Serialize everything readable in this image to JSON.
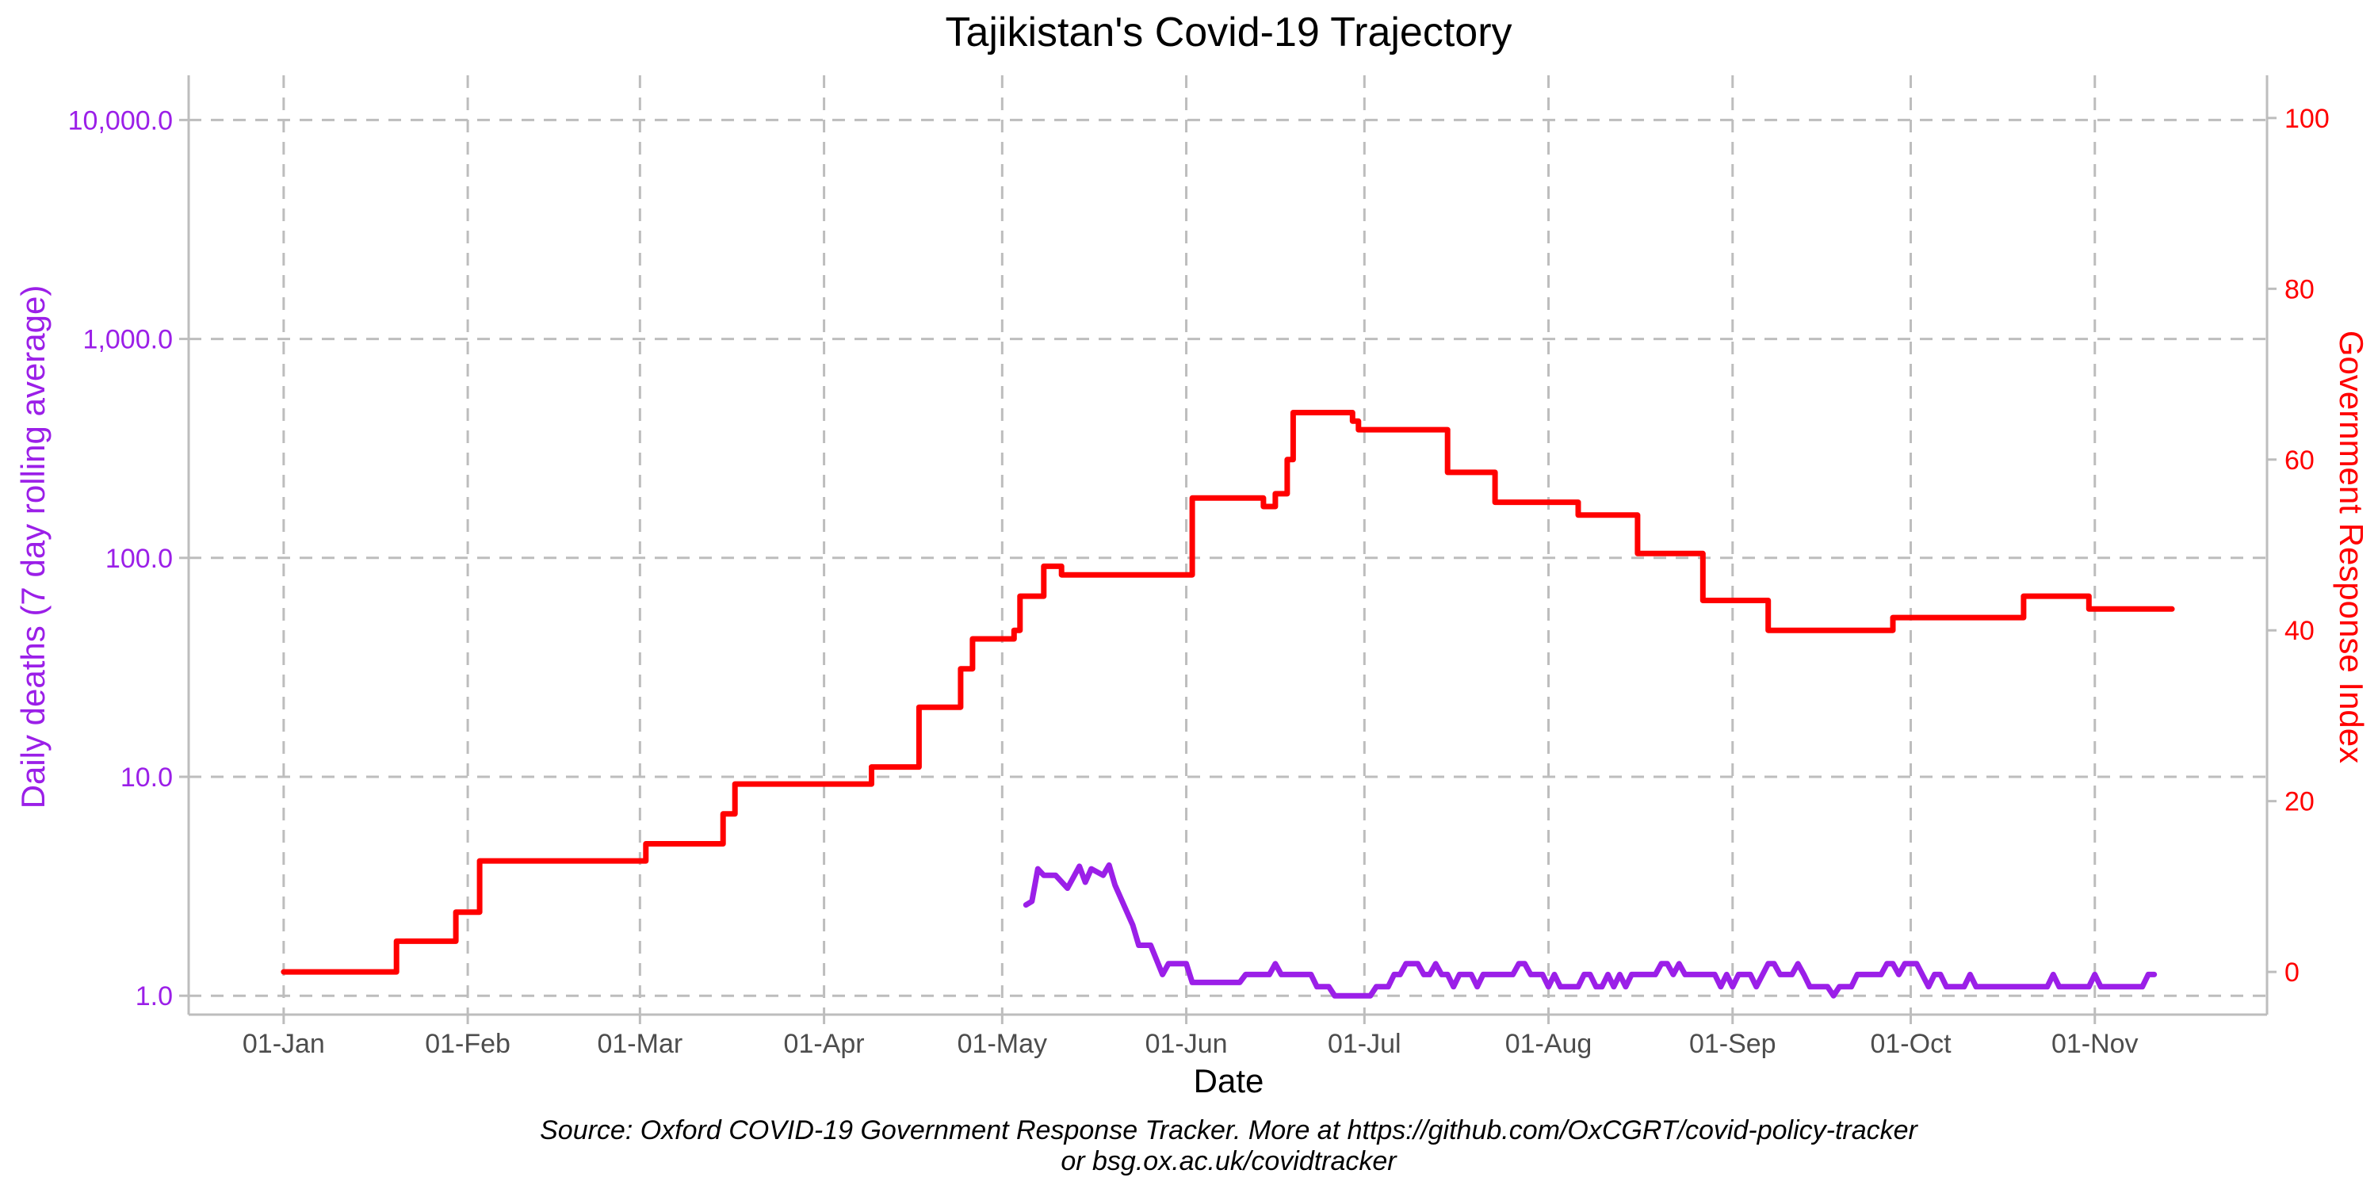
{
  "chart_data": {
    "type": "line",
    "title": "Tajikistan's Covid-19 Trajectory",
    "xlabel": "Date",
    "ylabel_left": "Daily deaths (7 day rolling average)",
    "ylabel_right": "Government Response Index",
    "caption_line1": "Source: Oxford COVID-19 Government Response Tracker. More at https://github.com/OxCGRT/covid-policy-tracker",
    "caption_line2": "or bsg.ox.ac.uk/covidtracker",
    "x_ticks": [
      {
        "date": "2020-01-01",
        "label": "01-Jan"
      },
      {
        "date": "2020-02-01",
        "label": "01-Feb"
      },
      {
        "date": "2020-03-01",
        "label": "01-Mar"
      },
      {
        "date": "2020-04-01",
        "label": "01-Apr"
      },
      {
        "date": "2020-05-01",
        "label": "01-May"
      },
      {
        "date": "2020-06-01",
        "label": "01-Jun"
      },
      {
        "date": "2020-07-01",
        "label": "01-Jul"
      },
      {
        "date": "2020-08-01",
        "label": "01-Aug"
      },
      {
        "date": "2020-09-01",
        "label": "01-Sep"
      },
      {
        "date": "2020-10-01",
        "label": "01-Oct"
      },
      {
        "date": "2020-11-01",
        "label": "01-Nov"
      }
    ],
    "xlim": [
      "2019-12-16",
      "2020-11-30"
    ],
    "y_left": {
      "scale": "log10",
      "lim": [
        0.82,
        16000
      ],
      "ticks": [
        {
          "value": 1,
          "label": "1.0"
        },
        {
          "value": 10,
          "label": "10.0"
        },
        {
          "value": 100,
          "label": "100.0"
        },
        {
          "value": 1000,
          "label": "1,000.0"
        },
        {
          "value": 10000,
          "label": "10,000.0"
        }
      ]
    },
    "y_right": {
      "scale": "linear",
      "lim": [
        -5,
        105
      ],
      "ticks": [
        {
          "value": 0,
          "label": "0"
        },
        {
          "value": 20,
          "label": "20"
        },
        {
          "value": 40,
          "label": "40"
        },
        {
          "value": 60,
          "label": "60"
        },
        {
          "value": 80,
          "label": "80"
        },
        {
          "value": 100,
          "label": "100"
        }
      ]
    },
    "grid": true,
    "series": [
      {
        "name": "Government Response Index",
        "axis": "right",
        "color": "#ff0000",
        "step": true,
        "points": [
          [
            "2020-01-01",
            0
          ],
          [
            "2020-01-20",
            3.6
          ],
          [
            "2020-01-30",
            7
          ],
          [
            "2020-02-01",
            7
          ],
          [
            "2020-02-03",
            13
          ],
          [
            "2020-03-02",
            15
          ],
          [
            "2020-03-15",
            18.5
          ],
          [
            "2020-03-17",
            22
          ],
          [
            "2020-04-09",
            24
          ],
          [
            "2020-04-17",
            31
          ],
          [
            "2020-04-24",
            35.5
          ],
          [
            "2020-04-26",
            39
          ],
          [
            "2020-05-03",
            40
          ],
          [
            "2020-05-04",
            44
          ],
          [
            "2020-05-08",
            47.5
          ],
          [
            "2020-05-11",
            46.5
          ],
          [
            "2020-06-02",
            55.5
          ],
          [
            "2020-06-14",
            54.5
          ],
          [
            "2020-06-16",
            56
          ],
          [
            "2020-06-18",
            60
          ],
          [
            "2020-06-19",
            65.5
          ],
          [
            "2020-06-29",
            64.5
          ],
          [
            "2020-06-30",
            63.5
          ],
          [
            "2020-07-15",
            58.5
          ],
          [
            "2020-07-23",
            55
          ],
          [
            "2020-08-06",
            53.5
          ],
          [
            "2020-08-16",
            49
          ],
          [
            "2020-08-27",
            43.5
          ],
          [
            "2020-09-07",
            40
          ],
          [
            "2020-09-28",
            41.5
          ],
          [
            "2020-10-20",
            44
          ],
          [
            "2020-10-31",
            42.5
          ],
          [
            "2020-11-14",
            42.5
          ]
        ]
      },
      {
        "name": "Daily deaths (7 day rolling average)",
        "axis": "left",
        "color": "#9b1fe8",
        "step": false,
        "points": [
          [
            "2020-05-05",
            2.6
          ],
          [
            "2020-05-06",
            2.7
          ],
          [
            "2020-05-07",
            3.8
          ],
          [
            "2020-05-08",
            3.55
          ],
          [
            "2020-05-10",
            3.55
          ],
          [
            "2020-05-12",
            3.1
          ],
          [
            "2020-05-14",
            3.9
          ],
          [
            "2020-05-15",
            3.3
          ],
          [
            "2020-05-16",
            3.8
          ],
          [
            "2020-05-18",
            3.55
          ],
          [
            "2020-05-19",
            3.95
          ],
          [
            "2020-05-20",
            3.2
          ],
          [
            "2020-05-23",
            2.1
          ],
          [
            "2020-05-24",
            1.7
          ],
          [
            "2020-05-26",
            1.7
          ],
          [
            "2020-05-28",
            1.25
          ],
          [
            "2020-05-29",
            1.4
          ],
          [
            "2020-06-01",
            1.4
          ],
          [
            "2020-06-02",
            1.15
          ],
          [
            "2020-06-10",
            1.15
          ],
          [
            "2020-06-11",
            1.25
          ],
          [
            "2020-06-15",
            1.25
          ],
          [
            "2020-06-16",
            1.4
          ],
          [
            "2020-06-17",
            1.25
          ],
          [
            "2020-06-22",
            1.25
          ],
          [
            "2020-06-23",
            1.1
          ],
          [
            "2020-06-25",
            1.1
          ],
          [
            "2020-06-26",
            1.0
          ],
          [
            "2020-07-02",
            1.0
          ],
          [
            "2020-07-03",
            1.1
          ],
          [
            "2020-07-05",
            1.1
          ],
          [
            "2020-07-06",
            1.25
          ],
          [
            "2020-07-07",
            1.25
          ],
          [
            "2020-07-08",
            1.4
          ],
          [
            "2020-07-10",
            1.4
          ],
          [
            "2020-07-11",
            1.25
          ],
          [
            "2020-07-12",
            1.25
          ],
          [
            "2020-07-13",
            1.4
          ],
          [
            "2020-07-14",
            1.25
          ],
          [
            "2020-07-15",
            1.25
          ],
          [
            "2020-07-16",
            1.1
          ],
          [
            "2020-07-17",
            1.25
          ],
          [
            "2020-07-19",
            1.25
          ],
          [
            "2020-07-20",
            1.1
          ],
          [
            "2020-07-21",
            1.25
          ],
          [
            "2020-07-26",
            1.25
          ],
          [
            "2020-07-27",
            1.4
          ],
          [
            "2020-07-28",
            1.4
          ],
          [
            "2020-07-29",
            1.25
          ],
          [
            "2020-07-31",
            1.25
          ],
          [
            "2020-08-01",
            1.1
          ],
          [
            "2020-08-02",
            1.25
          ],
          [
            "2020-08-03",
            1.1
          ],
          [
            "2020-08-06",
            1.1
          ],
          [
            "2020-08-07",
            1.25
          ],
          [
            "2020-08-08",
            1.25
          ],
          [
            "2020-08-09",
            1.1
          ],
          [
            "2020-08-10",
            1.1
          ],
          [
            "2020-08-11",
            1.25
          ],
          [
            "2020-08-12",
            1.1
          ],
          [
            "2020-08-13",
            1.25
          ],
          [
            "2020-08-14",
            1.1
          ],
          [
            "2020-08-15",
            1.25
          ],
          [
            "2020-08-19",
            1.25
          ],
          [
            "2020-08-20",
            1.4
          ],
          [
            "2020-08-21",
            1.4
          ],
          [
            "2020-08-22",
            1.25
          ],
          [
            "2020-08-23",
            1.4
          ],
          [
            "2020-08-24",
            1.25
          ],
          [
            "2020-08-29",
            1.25
          ],
          [
            "2020-08-30",
            1.1
          ],
          [
            "2020-08-31",
            1.25
          ],
          [
            "2020-09-01",
            1.1
          ],
          [
            "2020-09-02",
            1.25
          ],
          [
            "2020-09-04",
            1.25
          ],
          [
            "2020-09-05",
            1.1
          ],
          [
            "2020-09-07",
            1.4
          ],
          [
            "2020-09-08",
            1.4
          ],
          [
            "2020-09-09",
            1.25
          ],
          [
            "2020-09-11",
            1.25
          ],
          [
            "2020-09-12",
            1.4
          ],
          [
            "2020-09-13",
            1.25
          ],
          [
            "2020-09-14",
            1.1
          ],
          [
            "2020-09-17",
            1.1
          ],
          [
            "2020-09-18",
            1.0
          ],
          [
            "2020-09-19",
            1.1
          ],
          [
            "2020-09-21",
            1.1
          ],
          [
            "2020-09-22",
            1.25
          ],
          [
            "2020-09-26",
            1.25
          ],
          [
            "2020-09-27",
            1.4
          ],
          [
            "2020-09-28",
            1.4
          ],
          [
            "2020-09-29",
            1.25
          ],
          [
            "2020-09-30",
            1.4
          ],
          [
            "2020-10-02",
            1.4
          ],
          [
            "2020-10-04",
            1.1
          ],
          [
            "2020-10-05",
            1.25
          ],
          [
            "2020-10-06",
            1.25
          ],
          [
            "2020-10-07",
            1.1
          ],
          [
            "2020-10-10",
            1.1
          ],
          [
            "2020-10-11",
            1.25
          ],
          [
            "2020-10-12",
            1.1
          ],
          [
            "2020-10-24",
            1.1
          ],
          [
            "2020-10-25",
            1.25
          ],
          [
            "2020-10-26",
            1.1
          ],
          [
            "2020-10-31",
            1.1
          ],
          [
            "2020-11-01",
            1.25
          ],
          [
            "2020-11-02",
            1.1
          ],
          [
            "2020-11-09",
            1.1
          ],
          [
            "2020-11-10",
            1.25
          ],
          [
            "2020-11-11",
            1.25
          ]
        ]
      }
    ]
  }
}
